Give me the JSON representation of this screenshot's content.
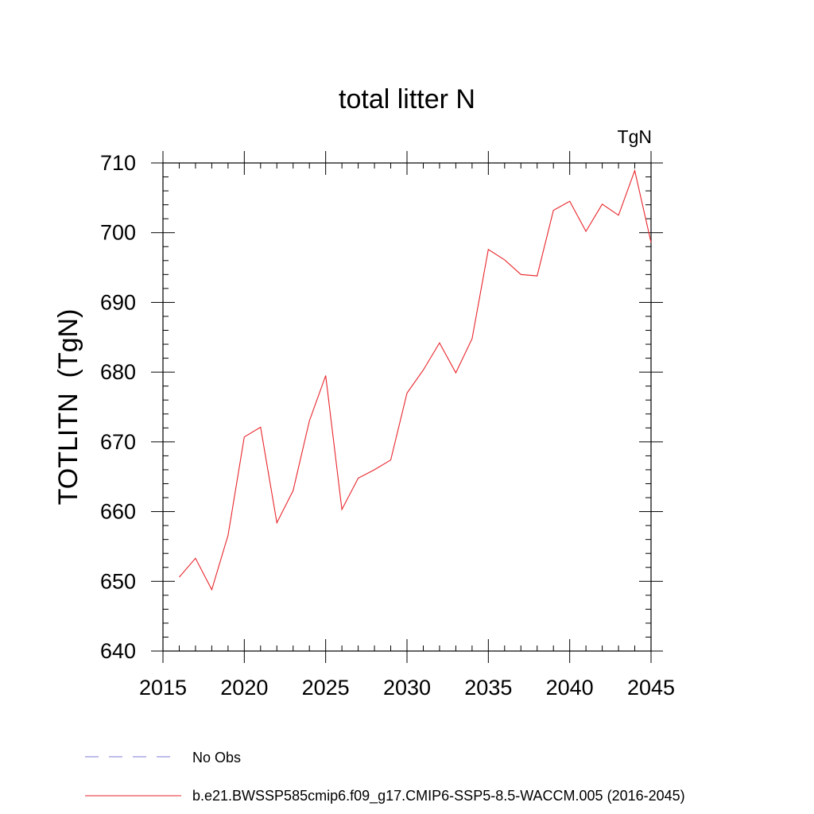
{
  "chart_data": {
    "type": "line",
    "title": "total litter N",
    "units_label": "TgN",
    "ylabel": "TOTLITN  (TgN)",
    "xlabel": "",
    "xlim": [
      2015,
      2045
    ],
    "ylim": [
      640,
      710
    ],
    "x_major_ticks": [
      2015,
      2020,
      2025,
      2030,
      2035,
      2040,
      2045
    ],
    "x_tick_labels": [
      "2015",
      "2020",
      "2025",
      "2030",
      "2035",
      "2040",
      "2045"
    ],
    "y_major_ticks": [
      640,
      650,
      660,
      670,
      680,
      690,
      700,
      710
    ],
    "y_tick_labels": [
      "640",
      "650",
      "660",
      "670",
      "680",
      "690",
      "700",
      "710"
    ],
    "grid": false,
    "legend_position": "bottom",
    "series": [
      {
        "name": "b.e21.BWSSP585cmip6.f09_g17.CMIP6-SSP5-8.5-WACCM.005 (2016-2045)",
        "color": "#e8252b",
        "style": "solid",
        "x": [
          2016,
          2017,
          2018,
          2019,
          2020,
          2021,
          2022,
          2023,
          2024,
          2025,
          2026,
          2027,
          2028,
          2029,
          2030,
          2031,
          2032,
          2033,
          2034,
          2035,
          2036,
          2037,
          2038,
          2039,
          2040,
          2041,
          2042,
          2043,
          2044,
          2045
        ],
        "values": [
          650.6,
          653.3,
          648.8,
          656.6,
          670.7,
          672.1,
          658.4,
          663.0,
          673.0,
          679.5,
          660.3,
          664.8,
          666.0,
          667.4,
          677.0,
          680.3,
          684.2,
          679.9,
          684.8,
          697.6,
          696.1,
          694.0,
          693.8,
          703.2,
          704.5,
          700.2,
          704.1,
          702.5,
          708.9,
          698.6
        ]
      }
    ],
    "legend": [
      {
        "name": "No Obs",
        "color": "#7b7bd6",
        "style": "dashed"
      },
      {
        "name": "b.e21.BWSSP585cmip6.f09_g17.CMIP6-SSP5-8.5-WACCM.005 (2016-2045)",
        "color": "#e8252b",
        "style": "solid"
      }
    ]
  }
}
